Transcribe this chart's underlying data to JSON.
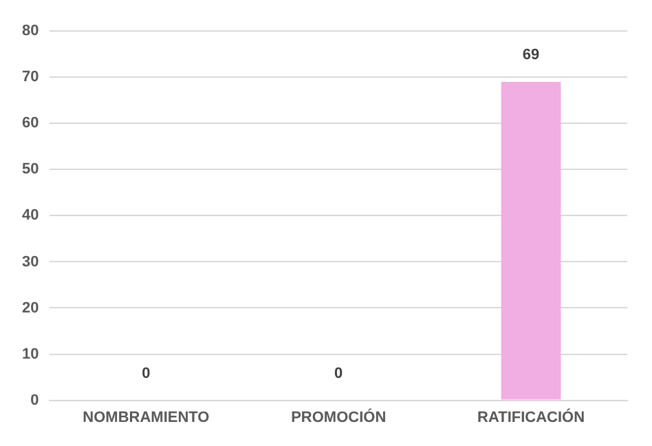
{
  "chart_data": {
    "type": "bar",
    "categories": [
      "NOMBRAMIENTO",
      "PROMOCIÓN",
      "RATIFICACIÓN"
    ],
    "values": [
      0,
      0,
      69
    ],
    "color": "#f0aee2",
    "ylim": [
      0,
      80
    ],
    "yticks": [
      0,
      10,
      20,
      30,
      40,
      50,
      60,
      70,
      80
    ],
    "grid": "y",
    "data_labels": true,
    "legend": false
  }
}
